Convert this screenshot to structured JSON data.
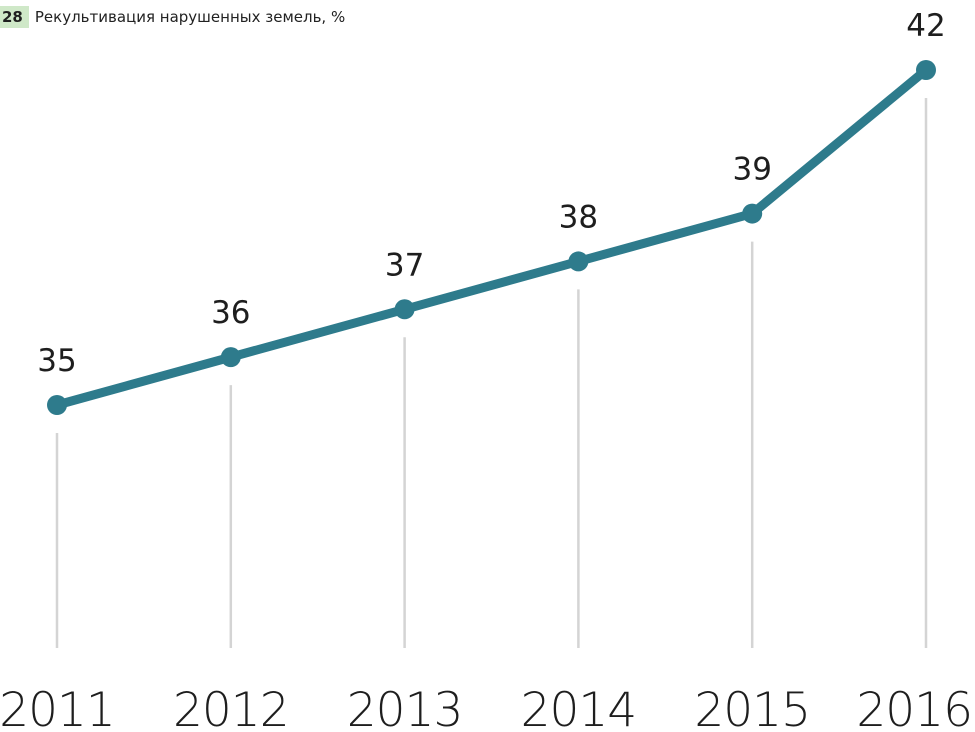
{
  "figure": {
    "number": "28",
    "title": "Рекультивация нарушенных земель, %"
  },
  "colors": {
    "line": "#2e7b8c",
    "drop_line": "#d4d4d4",
    "label_bg": "#cfe8c8"
  },
  "chart_data": {
    "type": "line",
    "title": "Рекультивация нарушенных земель, %",
    "categories": [
      "2011",
      "2012",
      "2013",
      "2014",
      "2015",
      "2016"
    ],
    "values": [
      35,
      36,
      37,
      38,
      39,
      42
    ],
    "data_labels": [
      "35",
      "36",
      "37",
      "38",
      "39",
      "42"
    ],
    "xlabel": "",
    "ylabel": "",
    "grid": false,
    "markers": true
  }
}
